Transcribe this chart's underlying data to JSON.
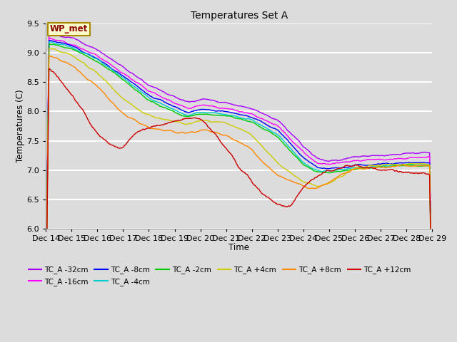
{
  "title": "Temperatures Set A",
  "xlabel": "Time",
  "ylabel": "Temperatures (C)",
  "ylim": [
    6.0,
    9.5
  ],
  "xlim": [
    0,
    15
  ],
  "fig_bg": "#dcdcdc",
  "plot_bg": "#dcdcdc",
  "grid_color": "white",
  "series": [
    {
      "label": "TC_A -32cm",
      "color": "#aa00ff"
    },
    {
      "label": "TC_A -16cm",
      "color": "#ff00ff"
    },
    {
      "label": "TC_A -8cm",
      "color": "#0000ff"
    },
    {
      "label": "TC_A -4cm",
      "color": "#00cccc"
    },
    {
      "label": "TC_A -2cm",
      "color": "#00cc00"
    },
    {
      "label": "TC_A +4cm",
      "color": "#cccc00"
    },
    {
      "label": "TC_A +8cm",
      "color": "#ff8800"
    },
    {
      "label": "TC_A +12cm",
      "color": "#cc0000"
    }
  ],
  "xtick_labels": [
    "Dec 14",
    "Dec 15",
    "Dec 16",
    "Dec 17",
    "Dec 18",
    "Dec 19",
    "Dec 20",
    "Dec 21",
    "Dec 22",
    "Dec 23",
    "Dec 24",
    "Dec 25",
    "Dec 26",
    "Dec 27",
    "Dec 28",
    "Dec 29"
  ],
  "ytick_vals": [
    6.0,
    6.5,
    7.0,
    7.5,
    8.0,
    8.5,
    9.0,
    9.5
  ],
  "annotation_text": "WP_met",
  "annotation_bg": "#ffffcc",
  "annotation_border": "#aa8800",
  "annotation_text_color": "#880000"
}
